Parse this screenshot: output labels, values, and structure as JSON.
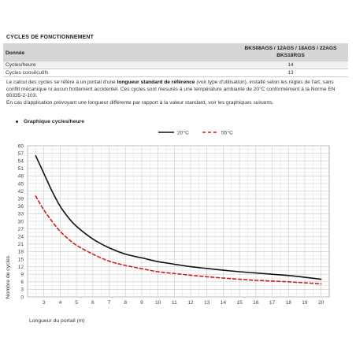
{
  "section_title": "CYCLES DE FONCTIONNEMENT",
  "table": {
    "header_label": "Donnée",
    "header_value_line1": "BKS08AGS / 12AGS / 18AGS / 22AGS",
    "header_value_line2": "BKS18RGS",
    "rows": [
      {
        "label": "Cycles/heure",
        "value": "14"
      },
      {
        "label": "Cycles consécutifs",
        "value": "13"
      }
    ]
  },
  "note": {
    "part1": "Le calcul des cycles se réfère à un portail d'une ",
    "bold": "longueur standard de référence",
    "part2": " (voir type d'utilisation), installé selon les règles de l'art, sans conflit mécanique ni aucun frottement accidentel. Ces cycles sont mesurés à une température ambiante de 20°C conformément à la Norme EN 60335-2-103.",
    "line3": "En cas d'application prévoyant une longueur différente par rapport à la valeur standard, voir les graphiques suivants."
  },
  "graph_label": "Graphique cycles/heure",
  "chart_data": {
    "type": "line",
    "title": "",
    "xlabel": "Longueur du portail (m)",
    "ylabel": "Nombre de cycles",
    "xlim": [
      2,
      20.5
    ],
    "ylim": [
      0,
      60
    ],
    "xticks": [
      3,
      4,
      5,
      6,
      7,
      8,
      9,
      10,
      11,
      12,
      13,
      14,
      15,
      16,
      17,
      18,
      19,
      20
    ],
    "yticks": [
      0,
      3,
      6,
      9,
      12,
      15,
      18,
      21,
      24,
      27,
      30,
      33,
      36,
      39,
      42,
      45,
      48,
      51,
      54,
      57,
      60
    ],
    "grid": true,
    "legend_position": "top-center",
    "series": [
      {
        "name": "20°C",
        "color": "#111111",
        "dash": false,
        "x": [
          2.5,
          3,
          3.5,
          4,
          4.5,
          5,
          6,
          7,
          8,
          9,
          10,
          11,
          12,
          13,
          14,
          15,
          16,
          17,
          18,
          19,
          20
        ],
        "y": [
          56,
          49,
          42,
          36,
          31.5,
          28,
          23,
          19.5,
          17,
          15.5,
          14,
          13,
          12,
          11.3,
          10.6,
          10,
          9.5,
          9,
          8.5,
          7.8,
          7
        ]
      },
      {
        "name": "55°C",
        "color": "#cc1f1f",
        "dash": true,
        "x": [
          2.5,
          3,
          3.5,
          4,
          4.5,
          5,
          6,
          7,
          8,
          9,
          10,
          11,
          12,
          13,
          14,
          15,
          16,
          17,
          18,
          19,
          20
        ],
        "y": [
          40,
          34.5,
          30,
          26,
          23,
          20.5,
          17,
          14.2,
          12.5,
          11.2,
          10,
          9.3,
          8.6,
          8,
          7.5,
          7,
          6.6,
          6.3,
          6,
          5.6,
          5.2
        ]
      }
    ]
  }
}
